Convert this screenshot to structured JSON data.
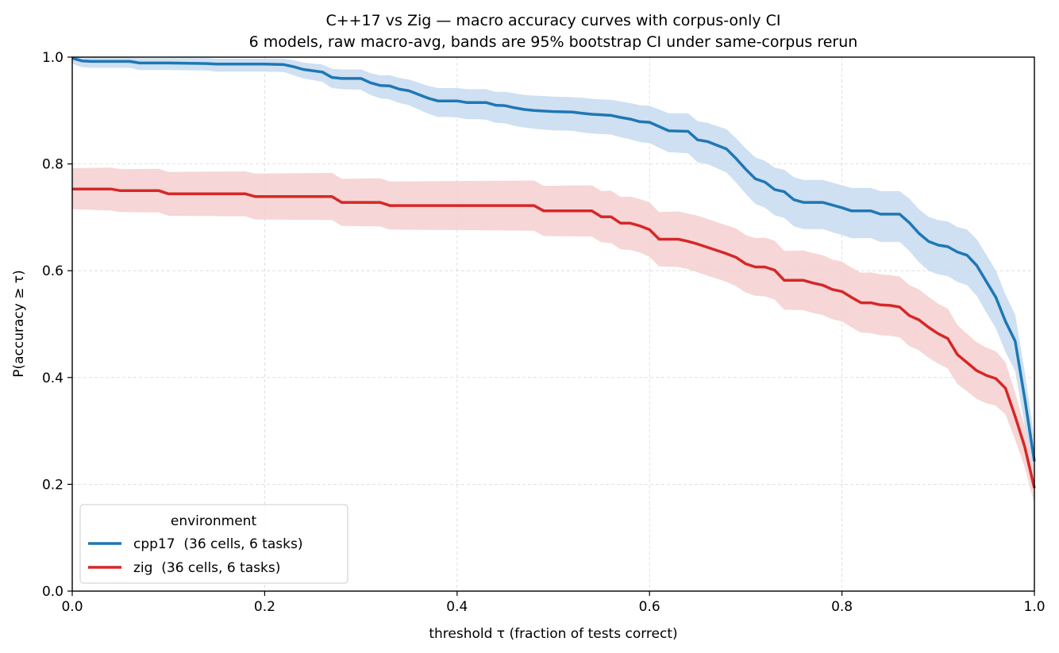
{
  "chart_data": {
    "type": "line",
    "title": "C++17 vs Zig — macro accuracy curves with corpus-only CI",
    "subtitle": "6 models, raw macro-avg, bands are 95% bootstrap CI under same-corpus rerun",
    "xlabel": "threshold τ (fraction of tests correct)",
    "ylabel": "P(accuracy ≥ τ)",
    "xlim": [
      0,
      1
    ],
    "ylim": [
      0,
      1
    ],
    "xticks": [
      "0.0",
      "0.2",
      "0.4",
      "0.6",
      "0.8",
      "1.0"
    ],
    "yticks": [
      "0.0",
      "0.2",
      "0.4",
      "0.6",
      "0.8",
      "1.0"
    ],
    "grid": true,
    "legend": {
      "title": "environment",
      "position": "lower-left"
    },
    "series": [
      {
        "name": "cpp17  (36 cells, 6 tasks)",
        "color": "#1f77b4",
        "band_color": "#c6dbef",
        "x": [
          0,
          0.01,
          0.02,
          0.06,
          0.07,
          0.1,
          0.14,
          0.15,
          0.2,
          0.22,
          0.23,
          0.24,
          0.26,
          0.27,
          0.28,
          0.3,
          0.31,
          0.32,
          0.33,
          0.34,
          0.35,
          0.36,
          0.37,
          0.38,
          0.39,
          0.4,
          0.41,
          0.42,
          0.43,
          0.44,
          0.45,
          0.46,
          0.47,
          0.48,
          0.5,
          0.52,
          0.53,
          0.54,
          0.56,
          0.57,
          0.58,
          0.59,
          0.6,
          0.61,
          0.62,
          0.64,
          0.65,
          0.66,
          0.67,
          0.68,
          0.69,
          0.7,
          0.71,
          0.72,
          0.73,
          0.74,
          0.75,
          0.76,
          0.78,
          0.79,
          0.8,
          0.81,
          0.82,
          0.83,
          0.84,
          0.86,
          0.87,
          0.88,
          0.89,
          0.9,
          0.91,
          0.92,
          0.93,
          0.94,
          0.95,
          0.96,
          0.97,
          0.98,
          0.99,
          1.0
        ],
        "y": [
          0.998,
          0.993,
          0.992,
          0.992,
          0.989,
          0.989,
          0.988,
          0.987,
          0.987,
          0.986,
          0.982,
          0.977,
          0.972,
          0.962,
          0.96,
          0.96,
          0.952,
          0.947,
          0.946,
          0.94,
          0.937,
          0.93,
          0.923,
          0.918,
          0.918,
          0.918,
          0.915,
          0.915,
          0.915,
          0.91,
          0.909,
          0.905,
          0.902,
          0.9,
          0.898,
          0.897,
          0.895,
          0.893,
          0.891,
          0.887,
          0.884,
          0.879,
          0.878,
          0.87,
          0.862,
          0.861,
          0.845,
          0.842,
          0.835,
          0.828,
          0.81,
          0.79,
          0.772,
          0.766,
          0.752,
          0.748,
          0.733,
          0.728,
          0.728,
          0.723,
          0.718,
          0.712,
          0.712,
          0.712,
          0.706,
          0.706,
          0.69,
          0.67,
          0.655,
          0.648,
          0.645,
          0.635,
          0.629,
          0.61,
          0.58,
          0.55,
          0.505,
          0.468,
          0.36,
          0.243
        ],
        "y_low": [
          0.988,
          0.981,
          0.98,
          0.98,
          0.976,
          0.976,
          0.975,
          0.973,
          0.973,
          0.972,
          0.966,
          0.96,
          0.954,
          0.942,
          0.94,
          0.939,
          0.929,
          0.923,
          0.921,
          0.914,
          0.91,
          0.902,
          0.894,
          0.888,
          0.888,
          0.887,
          0.884,
          0.884,
          0.883,
          0.877,
          0.876,
          0.871,
          0.868,
          0.866,
          0.863,
          0.862,
          0.859,
          0.857,
          0.855,
          0.85,
          0.846,
          0.841,
          0.839,
          0.83,
          0.822,
          0.82,
          0.803,
          0.8,
          0.792,
          0.784,
          0.765,
          0.744,
          0.725,
          0.718,
          0.704,
          0.699,
          0.683,
          0.678,
          0.678,
          0.672,
          0.667,
          0.661,
          0.661,
          0.661,
          0.654,
          0.654,
          0.637,
          0.616,
          0.6,
          0.593,
          0.59,
          0.579,
          0.573,
          0.553,
          0.522,
          0.492,
          0.448,
          0.412,
          0.31,
          0.2
        ],
        "y_high": [
          1.0,
          0.999,
          0.999,
          0.999,
          0.998,
          0.998,
          0.998,
          0.997,
          0.997,
          0.997,
          0.994,
          0.99,
          0.986,
          0.978,
          0.977,
          0.977,
          0.97,
          0.966,
          0.966,
          0.961,
          0.958,
          0.952,
          0.946,
          0.942,
          0.942,
          0.942,
          0.94,
          0.94,
          0.94,
          0.935,
          0.935,
          0.932,
          0.929,
          0.928,
          0.926,
          0.925,
          0.924,
          0.922,
          0.92,
          0.917,
          0.914,
          0.91,
          0.909,
          0.902,
          0.895,
          0.895,
          0.88,
          0.877,
          0.871,
          0.865,
          0.848,
          0.829,
          0.812,
          0.806,
          0.793,
          0.789,
          0.775,
          0.77,
          0.77,
          0.765,
          0.76,
          0.755,
          0.755,
          0.755,
          0.749,
          0.749,
          0.735,
          0.715,
          0.701,
          0.695,
          0.692,
          0.682,
          0.677,
          0.659,
          0.63,
          0.6,
          0.555,
          0.518,
          0.41,
          0.285
        ]
      },
      {
        "name": "zig  (36 cells, 6 tasks)",
        "color": "#d62728",
        "band_color": "#f5cfcf",
        "x": [
          0,
          0.04,
          0.05,
          0.09,
          0.1,
          0.18,
          0.19,
          0.27,
          0.28,
          0.32,
          0.33,
          0.48,
          0.49,
          0.54,
          0.55,
          0.56,
          0.57,
          0.58,
          0.59,
          0.6,
          0.61,
          0.63,
          0.64,
          0.65,
          0.66,
          0.67,
          0.68,
          0.69,
          0.7,
          0.71,
          0.72,
          0.73,
          0.74,
          0.76,
          0.77,
          0.78,
          0.79,
          0.8,
          0.81,
          0.82,
          0.83,
          0.84,
          0.85,
          0.86,
          0.87,
          0.88,
          0.89,
          0.9,
          0.91,
          0.92,
          0.93,
          0.94,
          0.95,
          0.96,
          0.97,
          0.98,
          0.99,
          1.0
        ],
        "y": [
          0.753,
          0.753,
          0.75,
          0.75,
          0.744,
          0.744,
          0.739,
          0.739,
          0.728,
          0.728,
          0.722,
          0.722,
          0.712,
          0.712,
          0.701,
          0.701,
          0.689,
          0.689,
          0.684,
          0.677,
          0.659,
          0.659,
          0.655,
          0.65,
          0.644,
          0.638,
          0.632,
          0.625,
          0.613,
          0.607,
          0.607,
          0.601,
          0.582,
          0.582,
          0.577,
          0.573,
          0.565,
          0.561,
          0.55,
          0.54,
          0.54,
          0.536,
          0.535,
          0.532,
          0.516,
          0.508,
          0.494,
          0.482,
          0.473,
          0.443,
          0.428,
          0.413,
          0.404,
          0.398,
          0.38,
          0.327,
          0.27,
          0.193
        ],
        "y_low": [
          0.715,
          0.713,
          0.71,
          0.709,
          0.703,
          0.702,
          0.696,
          0.695,
          0.684,
          0.683,
          0.677,
          0.675,
          0.665,
          0.664,
          0.653,
          0.652,
          0.64,
          0.639,
          0.634,
          0.626,
          0.608,
          0.607,
          0.603,
          0.597,
          0.591,
          0.585,
          0.579,
          0.571,
          0.559,
          0.553,
          0.552,
          0.546,
          0.527,
          0.526,
          0.521,
          0.517,
          0.509,
          0.505,
          0.494,
          0.484,
          0.483,
          0.479,
          0.478,
          0.475,
          0.459,
          0.451,
          0.437,
          0.426,
          0.417,
          0.388,
          0.374,
          0.36,
          0.352,
          0.347,
          0.331,
          0.283,
          0.232,
          0.163
        ],
        "y_high": [
          0.792,
          0.793,
          0.79,
          0.791,
          0.785,
          0.786,
          0.782,
          0.783,
          0.772,
          0.773,
          0.767,
          0.769,
          0.759,
          0.76,
          0.749,
          0.75,
          0.738,
          0.739,
          0.734,
          0.728,
          0.71,
          0.711,
          0.707,
          0.703,
          0.697,
          0.691,
          0.685,
          0.679,
          0.667,
          0.661,
          0.662,
          0.656,
          0.637,
          0.638,
          0.633,
          0.629,
          0.621,
          0.617,
          0.606,
          0.596,
          0.597,
          0.593,
          0.592,
          0.589,
          0.573,
          0.565,
          0.551,
          0.538,
          0.529,
          0.498,
          0.482,
          0.466,
          0.456,
          0.449,
          0.429,
          0.371,
          0.308,
          0.223
        ]
      }
    ]
  }
}
